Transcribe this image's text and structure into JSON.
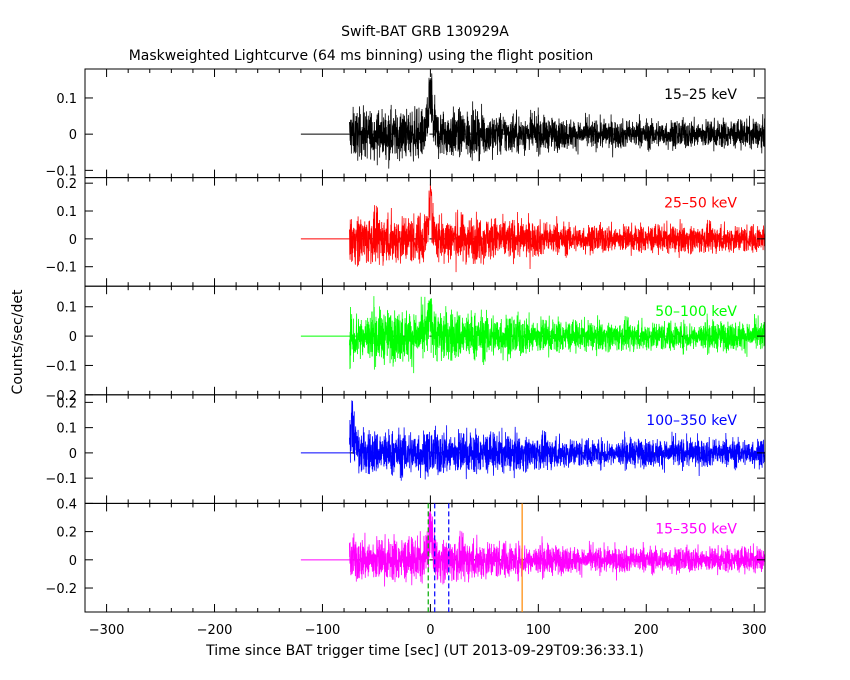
{
  "chart_data": {
    "type": "line",
    "title": "Swift-BAT GRB 130929A",
    "subtitle": "Maskweighted Lightcurve (64 ms binning) using the flight position",
    "xlabel": "Time since BAT trigger time [sec] (UT 2013-09-29T09:36:33.1)",
    "ylabel": "Counts/sec/det",
    "xlim": [
      -320,
      310
    ],
    "x_ticks": [
      -300,
      -200,
      -100,
      0,
      100,
      200,
      300
    ],
    "grid": false,
    "data_start": -75,
    "flat_segment": [
      -120,
      -75
    ],
    "panels": [
      {
        "name": "15-25 keV",
        "label": "15–25 keV",
        "color": "#000000",
        "ylim": [
          -0.12,
          0.18
        ],
        "y_ticks": [
          -0.1,
          0,
          0.1
        ],
        "y_tick_labels": [
          "−0.1",
          "0",
          "0.1"
        ],
        "noise_amplitude": [
          0.06,
          0.035
        ],
        "peak": {
          "x": 0,
          "height": 0.17
        }
      },
      {
        "name": "25-50 keV",
        "label": "25–50 keV",
        "color": "#ff0000",
        "ylim": [
          -0.17,
          0.22
        ],
        "y_ticks": [
          -0.1,
          0,
          0.1,
          0.2
        ],
        "y_tick_labels": [
          "−0.1",
          "0",
          "0.1",
          "0.2"
        ],
        "noise_amplitude": [
          0.08,
          0.045
        ],
        "peak": {
          "x": 0,
          "height": 0.2
        }
      },
      {
        "name": "50-100 keV",
        "label": "50–100 keV",
        "color": "#00ff00",
        "ylim": [
          -0.2,
          0.17
        ],
        "y_ticks": [
          -0.2,
          -0.1,
          0,
          0.1
        ],
        "y_tick_labels": [
          "−0.2",
          "−0.1",
          "0",
          "0.1"
        ],
        "noise_amplitude": [
          0.08,
          0.045
        ],
        "peak": {
          "x": 0,
          "height": 0.15
        }
      },
      {
        "name": "100-350 keV",
        "label": "100–350 keV",
        "color": "#0000ff",
        "ylim": [
          -0.2,
          0.23
        ],
        "y_ticks": [
          -0.1,
          0,
          0.1,
          0.2
        ],
        "y_tick_labels": [
          "−0.1",
          "0",
          "0.1",
          "0.2"
        ],
        "noise_amplitude": [
          0.08,
          0.05
        ],
        "peak": {
          "x": -72,
          "height": 0.22
        }
      },
      {
        "name": "15-350 keV",
        "label": "15–350 keV",
        "color": "#ff00ff",
        "ylim": [
          -0.37,
          0.4
        ],
        "y_ticks": [
          -0.2,
          0,
          0.2,
          0.4
        ],
        "y_tick_labels": [
          "−0.2",
          "0",
          "0.2",
          "0.4"
        ],
        "noise_amplitude": [
          0.14,
          0.08
        ],
        "peak": {
          "x": 0,
          "height": 0.37
        }
      }
    ],
    "markers": [
      {
        "name": "green-dashed",
        "x": -2,
        "color": "#00aa00",
        "style": "dashed"
      },
      {
        "name": "blue-dashed-1",
        "x": 4,
        "color": "#0000ff",
        "style": "dashed"
      },
      {
        "name": "blue-dashed-2",
        "x": 17,
        "color": "#0000ff",
        "style": "dashed"
      },
      {
        "name": "orange-line",
        "x": 85,
        "color": "#ff8800",
        "style": "solid"
      }
    ]
  }
}
